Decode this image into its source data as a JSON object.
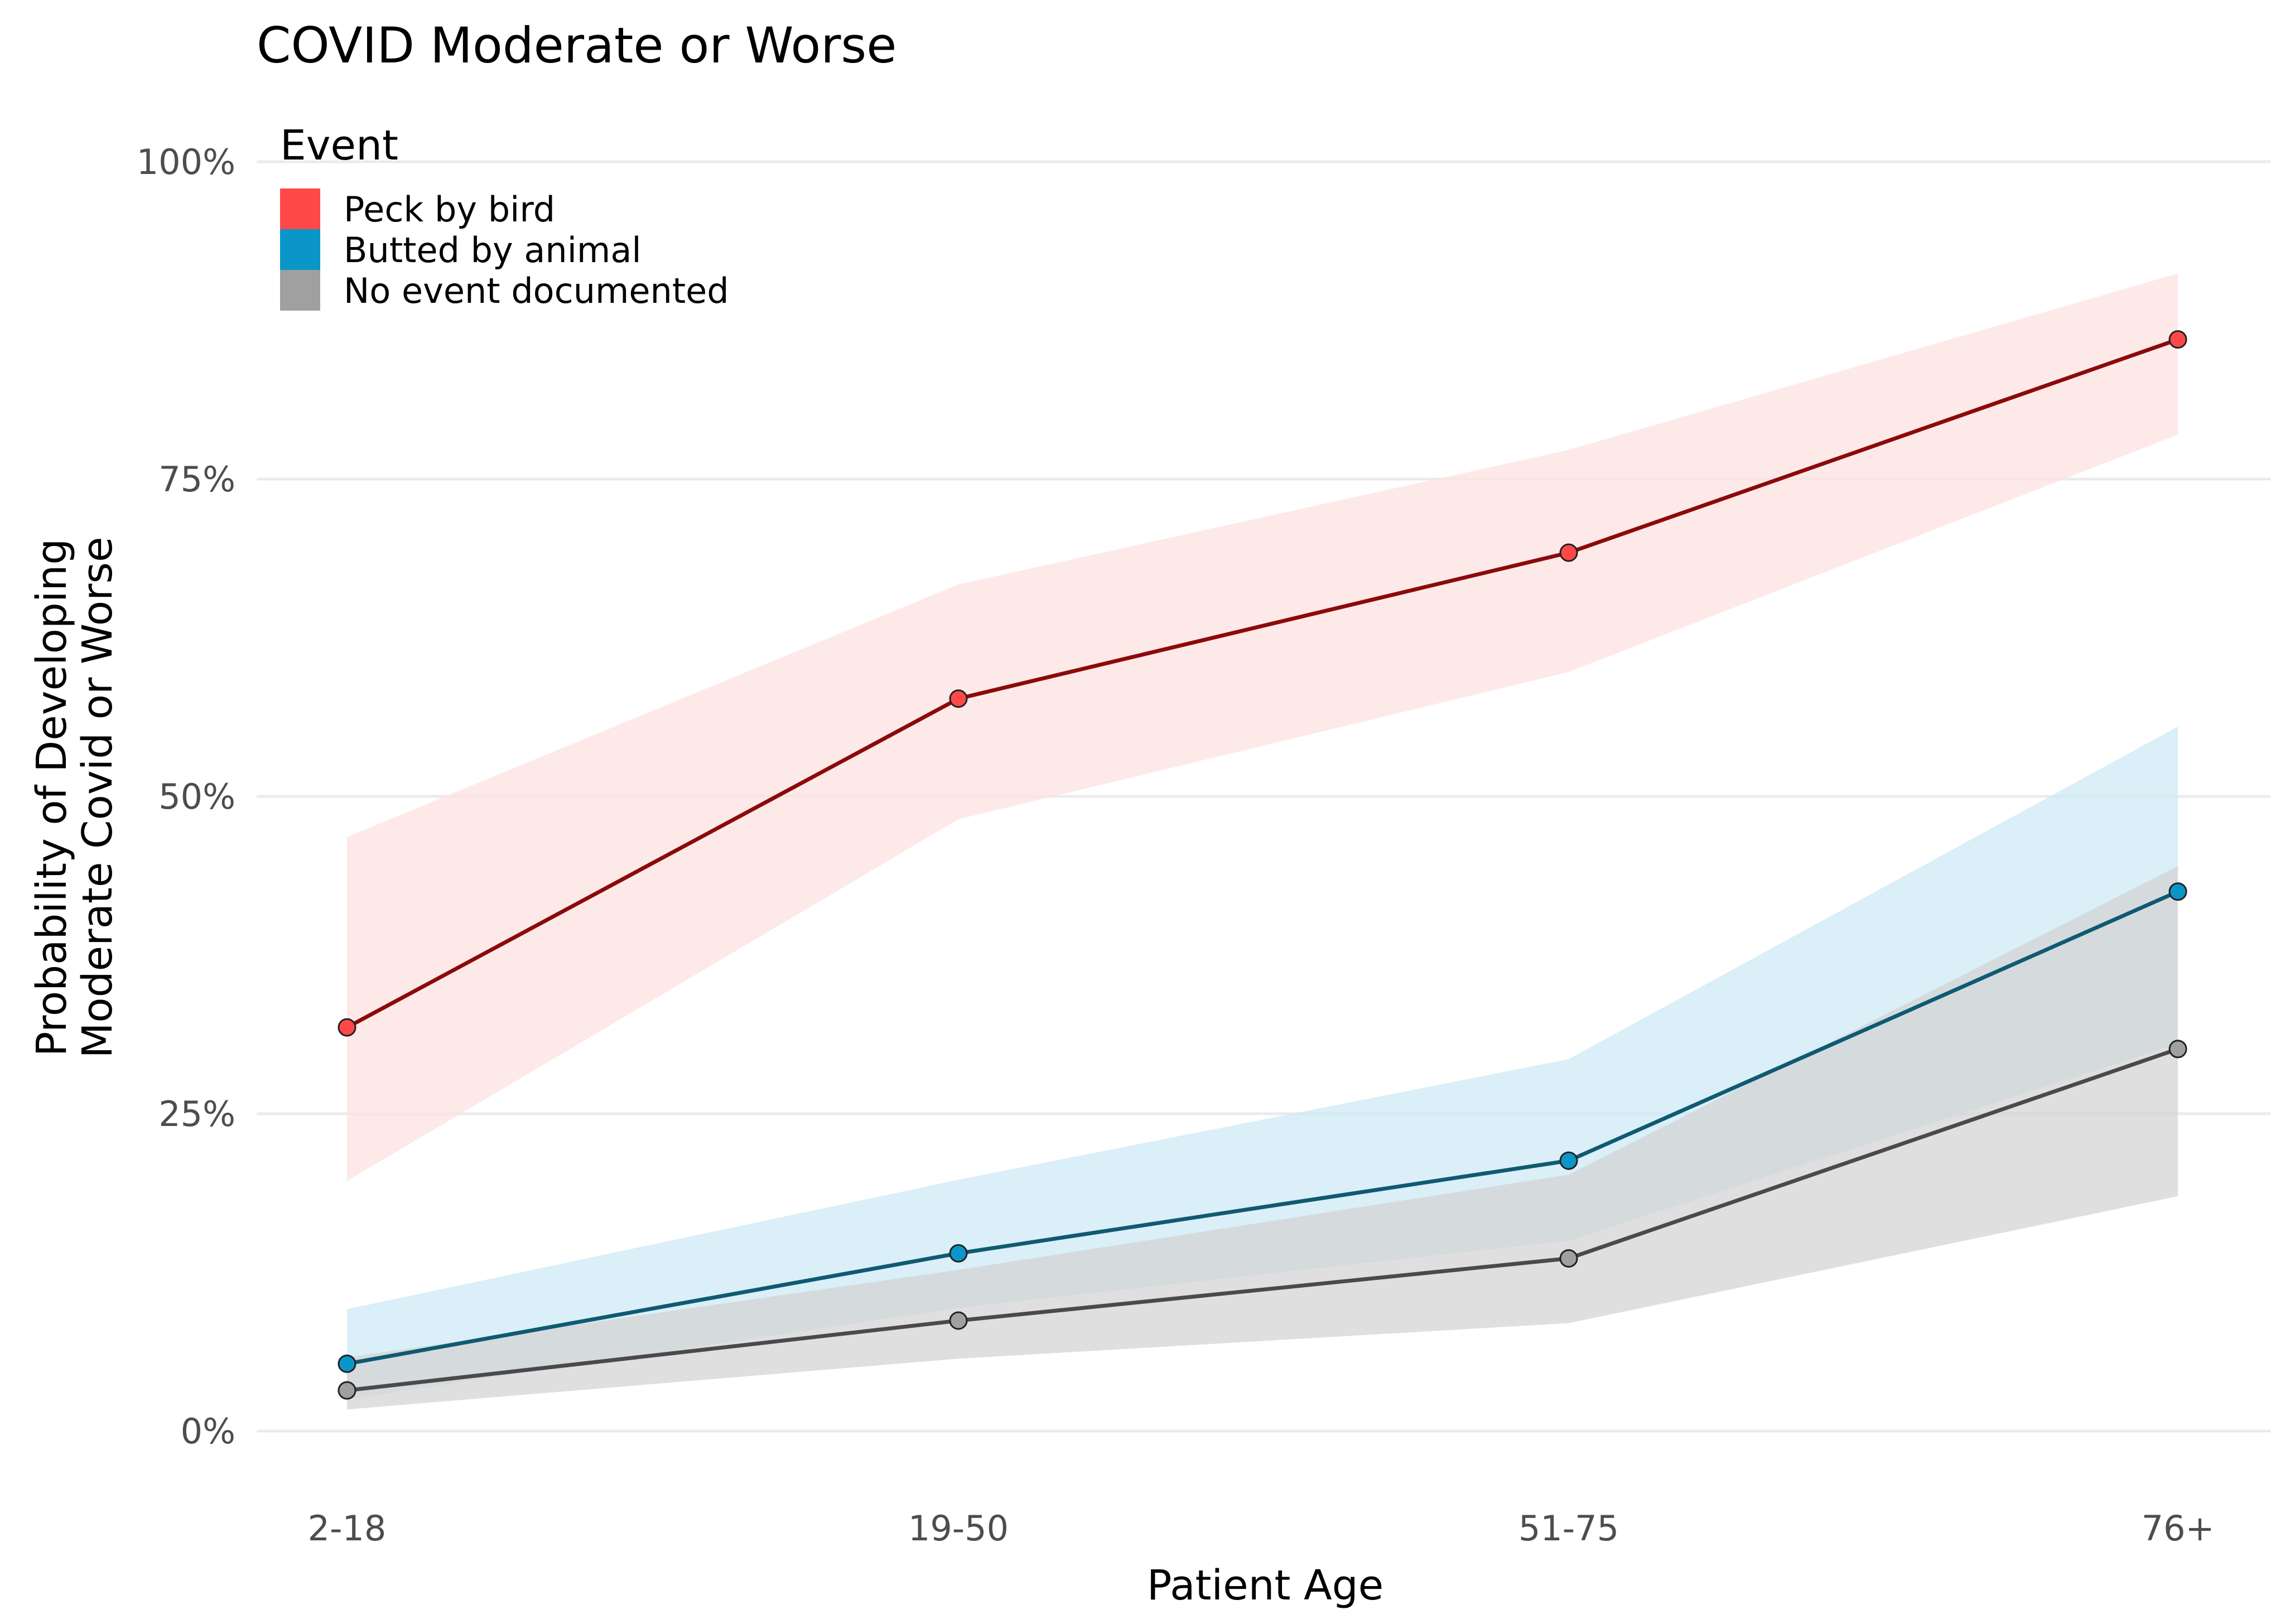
{
  "chart_data": {
    "type": "line",
    "title": "COVID Moderate or Worse",
    "xlabel": "Patient Age",
    "ylabel_lines": [
      "Probability of Developing",
      "Moderate Covid or Worse"
    ],
    "categories": [
      "2-18",
      "19-50",
      "51-75",
      "76+"
    ],
    "ylim": [
      0,
      1
    ],
    "yticks": [
      0,
      0.25,
      0.5,
      0.75,
      1.0
    ],
    "ytick_labels": [
      "0%",
      "25%",
      "50%",
      "75%",
      "100%"
    ],
    "grid": true,
    "legend": {
      "title": "Event",
      "placement": "top-left"
    },
    "series": [
      {
        "name": "Peck by bird",
        "values": [
          0.318,
          0.577,
          0.692,
          0.86
        ],
        "lower": [
          0.197,
          0.482,
          0.598,
          0.785
        ],
        "upper": [
          0.468,
          0.667,
          0.773,
          0.912
        ],
        "line_color": "#8b0a0a",
        "point_color": "#ff4848",
        "band_color": "#fde0e0",
        "legend_color": "#ff4848"
      },
      {
        "name": "Butted by animal",
        "values": [
          0.053,
          0.14,
          0.213,
          0.425
        ],
        "lower": [
          0.025,
          0.097,
          0.15,
          0.305
        ],
        "upper": [
          0.096,
          0.198,
          0.293,
          0.555
        ],
        "line_color": "#0f5a73",
        "point_color": "#0a96c8",
        "band_color": "#cce9f4",
        "legend_color": "#0a96c8"
      },
      {
        "name": "No event documented",
        "values": [
          0.032,
          0.087,
          0.136,
          0.301
        ],
        "lower": [
          0.017,
          0.057,
          0.085,
          0.185
        ],
        "upper": [
          0.058,
          0.127,
          0.202,
          0.445
        ],
        "line_color": "#4a4a4a",
        "point_color": "#a0a0a0",
        "band_color": "#d2d2d2",
        "legend_color": "#a0a0a0"
      }
    ]
  }
}
